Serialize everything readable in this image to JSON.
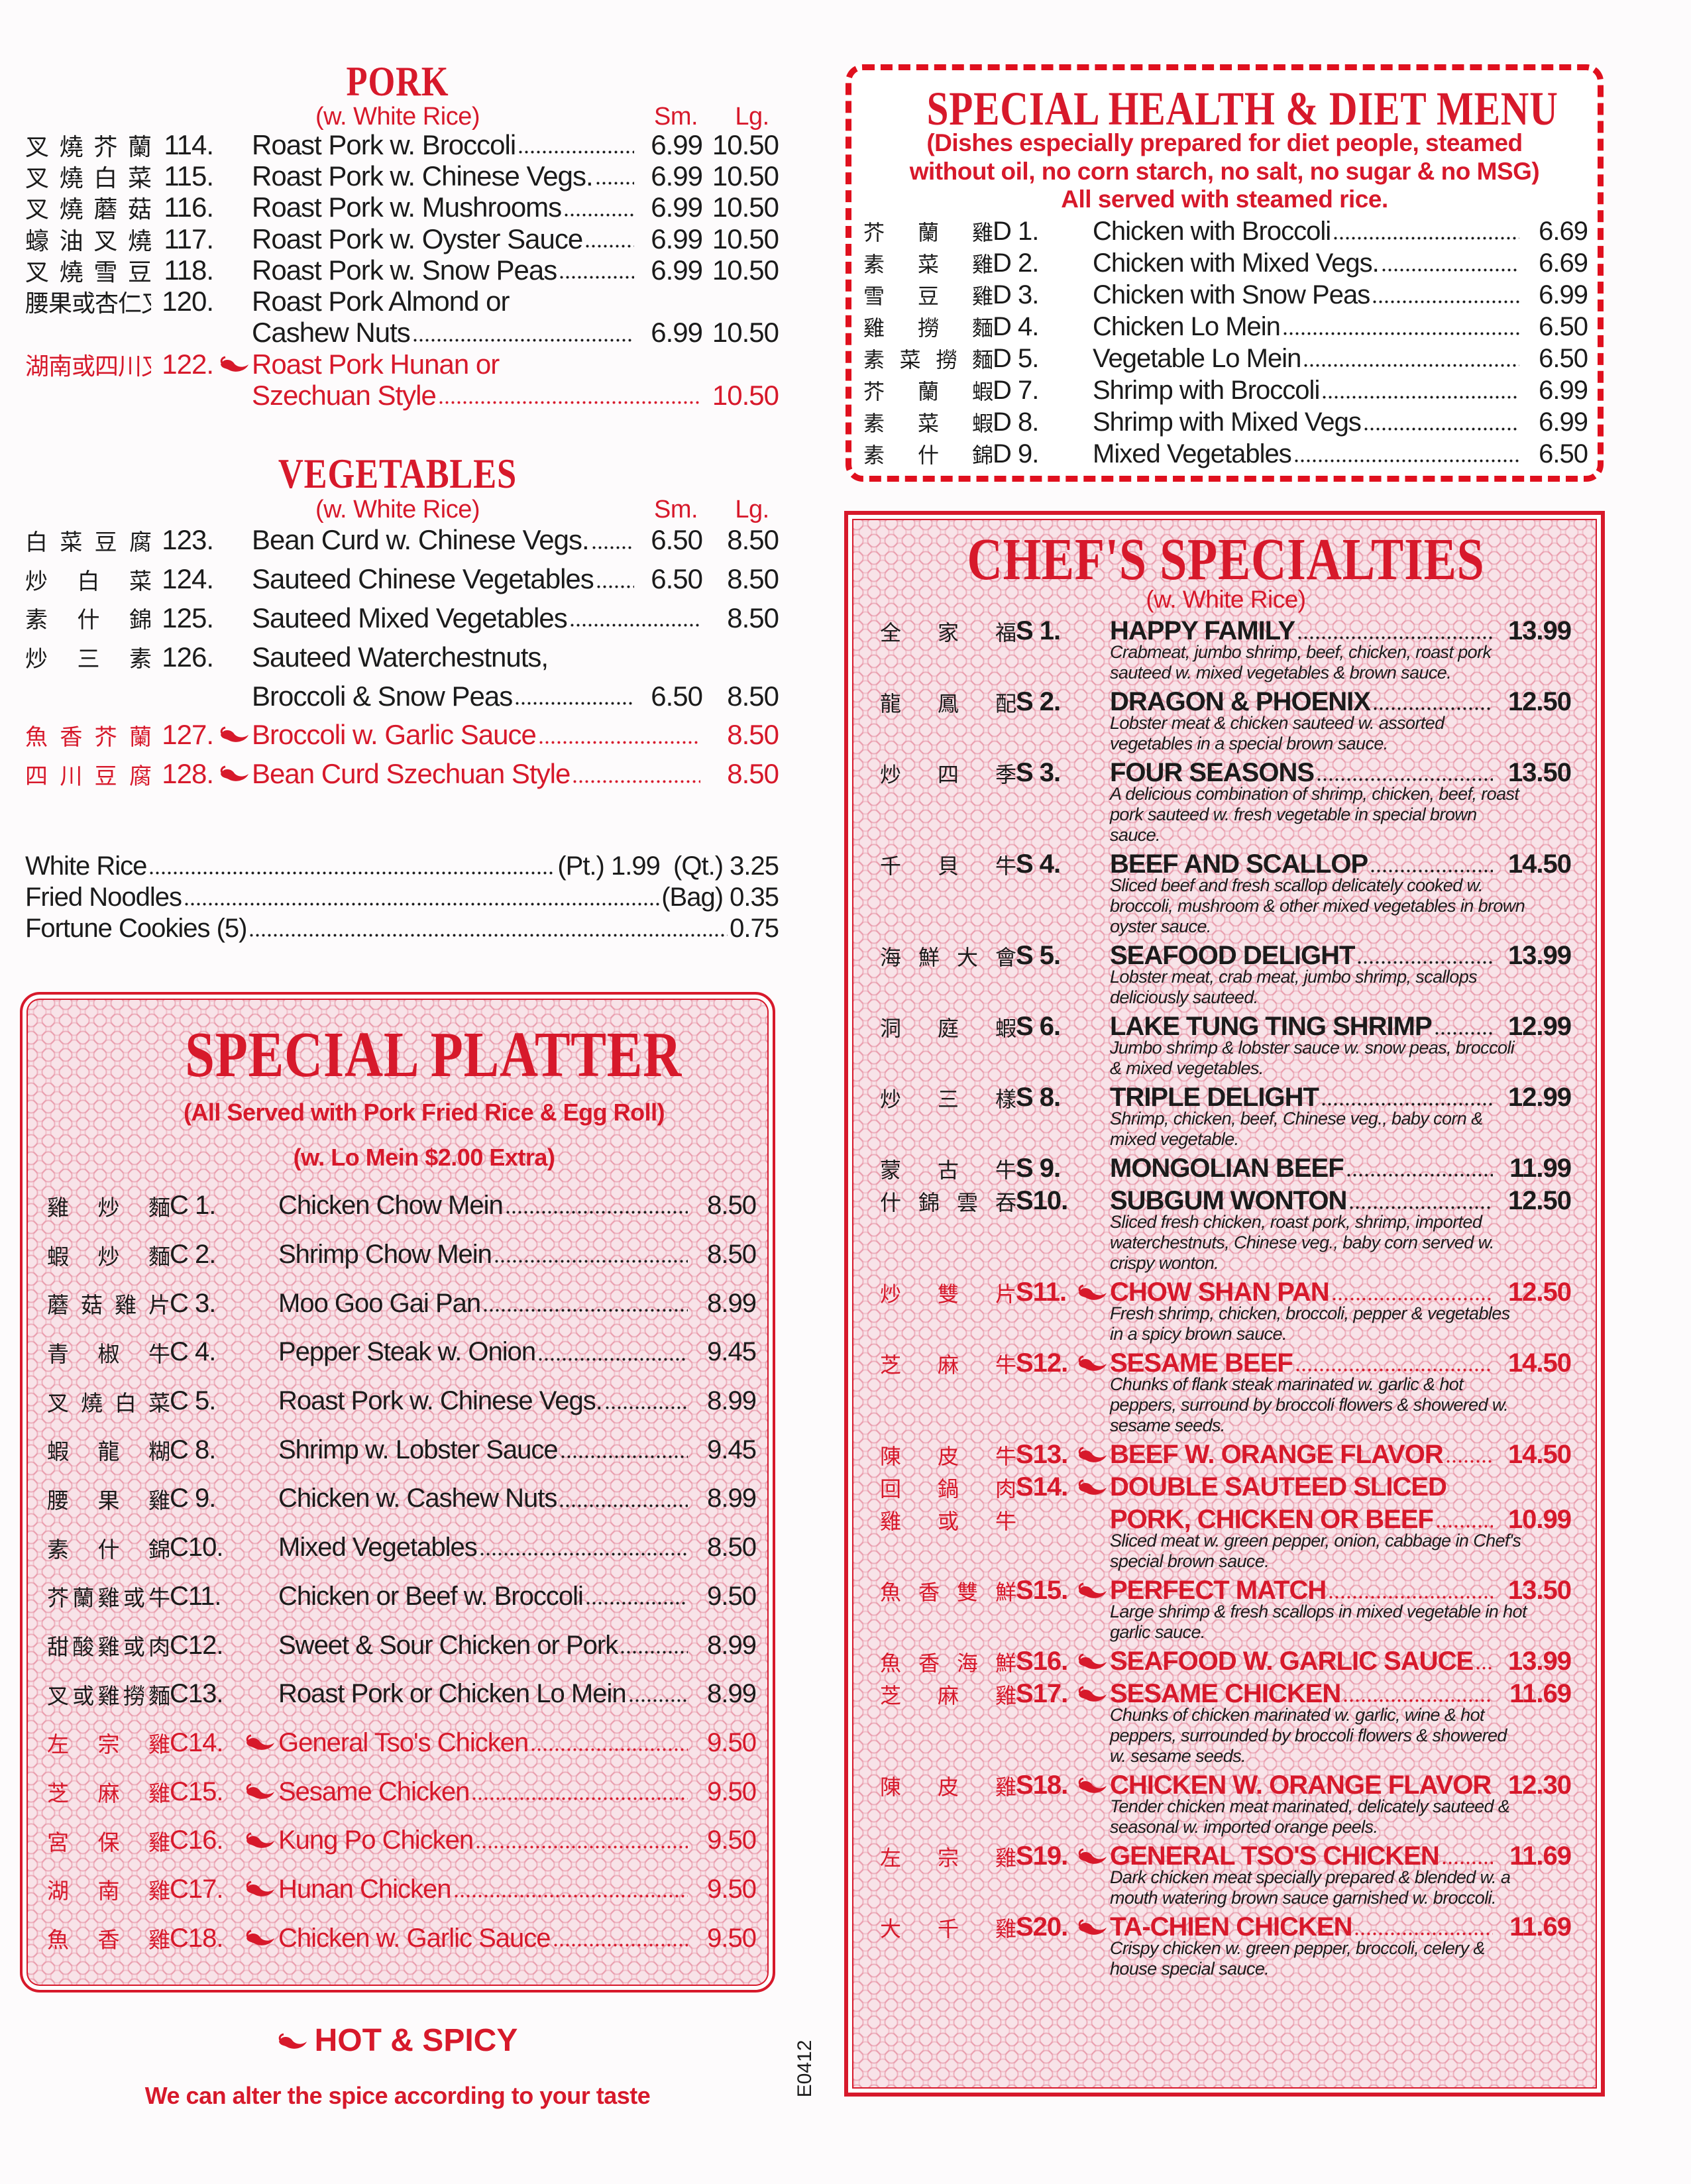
{
  "colors": {
    "accent": "#d7192b",
    "text": "#1b1b1b",
    "panel": "#f8e3e8"
  },
  "pork": {
    "title": "PORK",
    "subtitle": "(w. White Rice)",
    "sm_label": "Sm.",
    "lg_label": "Lg.",
    "items": [
      {
        "zh": "叉燒芥蘭",
        "code": "114.",
        "name": "Roast Pork w. Broccoli",
        "sm": "6.99",
        "lg": "10.50"
      },
      {
        "zh": "叉燒白菜",
        "code": "115.",
        "name": "Roast Pork w. Chinese Vegs.",
        "sm": "6.99",
        "lg": "10.50"
      },
      {
        "zh": "叉燒蘑菇",
        "code": "116.",
        "name": "Roast Pork w. Mushrooms",
        "sm": "6.99",
        "lg": "10.50"
      },
      {
        "zh": "蠔油叉燒",
        "code": "117.",
        "name": "Roast Pork w. Oyster Sauce",
        "sm": "6.99",
        "lg": "10.50"
      },
      {
        "zh": "叉燒雪豆",
        "code": "118.",
        "name": "Roast Pork w. Snow Peas",
        "sm": "6.99",
        "lg": "10.50"
      },
      {
        "zh": "腰果或杏仁叉燒",
        "code": "120.",
        "name": "Roast Pork Almond or",
        "name2": "Cashew Nuts",
        "sm": "6.99",
        "lg": "10.50"
      },
      {
        "zh": "湖南或四川叉燒",
        "code": "122.",
        "hot": true,
        "red": true,
        "name": "Roast Pork Hunan or",
        "name2": "Szechuan Style",
        "lg": "10.50"
      }
    ]
  },
  "vegetables": {
    "title": "VEGETABLES",
    "subtitle": "(w. White Rice)",
    "sm_label": "Sm.",
    "lg_label": "Lg.",
    "items": [
      {
        "zh": "白菜豆腐",
        "code": "123.",
        "name": "Bean Curd w. Chinese Vegs.",
        "sm": "6.50",
        "lg": "8.50"
      },
      {
        "zh": "炒白菜",
        "code": "124.",
        "name": "Sauteed Chinese Vegetables",
        "sm": "6.50",
        "lg": "8.50"
      },
      {
        "zh": "素什錦",
        "code": "125.",
        "name": "Sauteed Mixed Vegetables",
        "lg": "8.50"
      },
      {
        "zh": "炒三素",
        "code": "126.",
        "name": "Sauteed Waterchestnuts,",
        "name2": "Broccoli & Snow Peas",
        "sm": "6.50",
        "lg": "8.50"
      },
      {
        "zh": "魚香芥蘭",
        "code": "127.",
        "hot": true,
        "red": true,
        "name": "Broccoli w. Garlic Sauce",
        "lg": "8.50"
      },
      {
        "zh": "四川豆腐",
        "code": "128.",
        "hot": true,
        "red": true,
        "name": "Bean Curd Szechuan Style",
        "lg": "8.50"
      }
    ]
  },
  "extras": [
    {
      "name": "White Rice",
      "price": "(Pt.) 1.99  (Qt.) 3.25"
    },
    {
      "name": "Fried Noodles",
      "price": "(Bag) 0.35"
    },
    {
      "name": "Fortune Cookies (5)",
      "price": "0.75"
    }
  ],
  "platter": {
    "title": "SPECIAL PLATTER",
    "subtitle1": "(All Served with Pork Fried Rice & Egg Roll)",
    "subtitle2": "(w. Lo Mein $2.00 Extra)",
    "items": [
      {
        "zh": "雞炒麵",
        "code": "C 1.",
        "name": "Chicken Chow Mein",
        "price": "8.50"
      },
      {
        "zh": "蝦炒麵",
        "code": "C 2.",
        "name": "Shrimp Chow Mein",
        "price": "8.50"
      },
      {
        "zh": "蘑菇雞片",
        "code": "C 3.",
        "name": "Moo Goo Gai Pan",
        "price": "8.99"
      },
      {
        "zh": "青椒牛",
        "code": "C 4.",
        "name": "Pepper Steak w. Onion",
        "price": "9.45"
      },
      {
        "zh": "叉燒白菜",
        "code": "C 5.",
        "name": "Roast Pork w. Chinese Vegs.",
        "price": "8.99"
      },
      {
        "zh": "蝦龍糊",
        "code": "C 8.",
        "name": "Shrimp w. Lobster Sauce",
        "price": "9.45"
      },
      {
        "zh": "腰果雞",
        "code": "C 9.",
        "name": "Chicken w. Cashew Nuts",
        "price": "8.99"
      },
      {
        "zh": "素什錦",
        "code": "C10.",
        "name": "Mixed Vegetables",
        "price": "8.50"
      },
      {
        "zh": "芥蘭雞或牛",
        "code": "C11.",
        "name": "Chicken or Beef w. Broccoli",
        "price": "9.50"
      },
      {
        "zh": "甜酸雞或肉",
        "code": "C12.",
        "name": "Sweet & Sour Chicken or Pork",
        "price": "8.99"
      },
      {
        "zh": "叉或雞撈麵",
        "code": "C13.",
        "name": "Roast Pork or Chicken Lo Mein",
        "price": "8.99"
      },
      {
        "zh": "左宗雞",
        "code": "C14.",
        "hot": true,
        "red": true,
        "name": "General Tso's Chicken",
        "price": "9.50"
      },
      {
        "zh": "芝麻雞",
        "code": "C15.",
        "hot": true,
        "red": true,
        "name": "Sesame Chicken",
        "price": "9.50"
      },
      {
        "zh": "宮保雞",
        "code": "C16.",
        "hot": true,
        "red": true,
        "name": "Kung Po Chicken",
        "price": "9.50"
      },
      {
        "zh": "湖南雞",
        "code": "C17.",
        "hot": true,
        "red": true,
        "name": "Hunan Chicken",
        "price": "9.50"
      },
      {
        "zh": "魚香雞",
        "code": "C18.",
        "hot": true,
        "red": true,
        "name": "Chicken w. Garlic Sauce",
        "price": "9.50"
      }
    ]
  },
  "footer": {
    "hot_label": "HOT & SPICY",
    "note": "We can alter the spice according to your taste",
    "form_code": "E0412"
  },
  "diet": {
    "title": "SPECIAL HEALTH & DIET MENU",
    "subtitle1": "(Dishes especially prepared for diet people, steamed",
    "subtitle2": "without oil, no corn starch, no salt, no sugar & no MSG)",
    "subtitle3": "All served with steamed rice.",
    "items": [
      {
        "zh": "芥蘭雞",
        "code": "D 1.",
        "name": "Chicken with Broccoli",
        "price": "6.69"
      },
      {
        "zh": "素菜雞",
        "code": "D 2.",
        "name": "Chicken with Mixed Vegs.",
        "price": "6.69"
      },
      {
        "zh": "雪豆雞",
        "code": "D 3.",
        "name": "Chicken with Snow Peas",
        "price": "6.99"
      },
      {
        "zh": "雞撈麵",
        "code": "D 4.",
        "name": "Chicken Lo Mein",
        "price": "6.50"
      },
      {
        "zh": "素菜撈麵",
        "code": "D 5.",
        "name": "Vegetable Lo Mein",
        "price": "6.50"
      },
      {
        "zh": "芥蘭蝦",
        "code": "D 7.",
        "name": "Shrimp with Broccoli",
        "price": "6.99"
      },
      {
        "zh": "素菜蝦",
        "code": "D 8.",
        "name": "Shrimp with Mixed Vegs",
        "price": "6.99"
      },
      {
        "zh": "素什錦",
        "code": "D 9.",
        "name": "Mixed Vegetables",
        "price": "6.50"
      }
    ]
  },
  "chef": {
    "title": "CHEF'S SPECIALTIES",
    "subtitle": "(w. White Rice)",
    "items": [
      {
        "zh": "全家福",
        "code": "S 1.",
        "name": "HAPPY FAMILY",
        "price": "13.99",
        "desc": "Crabmeat, jumbo shrimp, beef, chicken, roast pork sauteed w. mixed vegetables & brown sauce."
      },
      {
        "zh": "龍鳳配",
        "code": "S 2.",
        "name": "DRAGON & PHOENIX",
        "price": "12.50",
        "desc": "Lobster meat & chicken sauteed w. assorted vegetables in a special brown sauce."
      },
      {
        "zh": "炒四季",
        "code": "S 3.",
        "name": "FOUR SEASONS",
        "price": "13.50",
        "desc": "A delicious combination of shrimp, chicken, beef, roast pork sauteed w. fresh vegetable in special brown sauce."
      },
      {
        "zh": "千貝牛",
        "code": "S 4.",
        "name": "BEEF AND SCALLOP",
        "price": "14.50",
        "desc": "Sliced beef and fresh scallop delicately cooked w. broccoli, mushroom & other mixed vegetables in brown oyster sauce."
      },
      {
        "zh": "海鮮大會",
        "code": "S 5.",
        "name": "SEAFOOD DELIGHT",
        "price": "13.99",
        "desc": "Lobster meat, crab meat, jumbo shrimp, scallops deliciously sauteed."
      },
      {
        "zh": "洞庭蝦",
        "code": "S 6.",
        "name": "LAKE TUNG TING SHRIMP",
        "price": "12.99",
        "desc": "Jumbo shrimp & lobster sauce w. snow peas, broccoli & mixed vegetables."
      },
      {
        "zh": "炒三樣",
        "code": "S 8.",
        "name": "TRIPLE DELIGHT",
        "price": "12.99",
        "desc": "Shrimp, chicken, beef, Chinese veg., baby corn & mixed vegetable."
      },
      {
        "zh": "蒙古牛",
        "code": "S 9.",
        "name": "MONGOLIAN BEEF",
        "price": "11.99"
      },
      {
        "zh": "什錦雲吞",
        "code": "S10.",
        "name": "SUBGUM WONTON",
        "price": "12.50",
        "desc": "Sliced fresh chicken, roast pork, shrimp, imported waterchestnuts, Chinese veg., baby corn served w. crispy wonton."
      },
      {
        "zh": "炒雙片",
        "code": "S11.",
        "hot": true,
        "red": true,
        "name": "CHOW SHAN PAN",
        "price": "12.50",
        "desc": "Fresh shrimp, chicken, broccoli, pepper & vegetables in a spicy brown sauce."
      },
      {
        "zh": "芝麻牛",
        "code": "S12.",
        "hot": true,
        "red": true,
        "name": "SESAME BEEF",
        "price": "14.50",
        "desc": "Chunks of flank steak marinated w. garlic & hot peppers, surround by broccoli flowers & showered w. sesame seeds."
      },
      {
        "zh": "陳皮牛",
        "code": "S13.",
        "hot": true,
        "red": true,
        "name": "BEEF W. ORANGE FLAVOR",
        "price": "14.50"
      },
      {
        "zh": "回鍋肉",
        "zh2": "雞或牛",
        "code": "S14.",
        "hot": true,
        "red": true,
        "name": "DOUBLE SAUTEED SLICED",
        "name2": "PORK, CHICKEN OR BEEF",
        "price": "10.99",
        "desc": "Sliced meat w. green pepper, onion, cabbage in Chef's special brown sauce."
      },
      {
        "zh": "魚香雙鮮",
        "code": "S15.",
        "hot": true,
        "red": true,
        "name": "PERFECT MATCH",
        "price": "13.50",
        "desc": "Large shrimp & fresh scallops in mixed vegetable in hot garlic sauce."
      },
      {
        "zh": "魚香海鮮",
        "code": "S16.",
        "hot": true,
        "red": true,
        "name": "SEAFOOD W. GARLIC SAUCE",
        "price": "13.99"
      },
      {
        "zh": "芝麻雞",
        "code": "S17.",
        "hot": true,
        "red": true,
        "name": "SESAME CHICKEN",
        "price": "11.69",
        "desc": "Chunks of chicken marinated w. garlic, wine & hot peppers, surrounded by broccoli flowers & showered w. sesame seeds."
      },
      {
        "zh": "陳皮雞",
        "code": "S18.",
        "hot": true,
        "red": true,
        "name": "CHICKEN W. ORANGE FLAVOR",
        "price": "12.30",
        "desc": "Tender chicken meat marinated, delicately sauteed & seasonal w. imported orange peels."
      },
      {
        "zh": "左宗雞",
        "code": "S19.",
        "hot": true,
        "red": true,
        "name": "GENERAL TSO'S CHICKEN",
        "price": "11.69",
        "desc": "Dark chicken meat specially prepared & blended w. a mouth watering brown sauce garnished w. broccoli."
      },
      {
        "zh": "大千雞",
        "code": "S20.",
        "hot": true,
        "red": true,
        "name": "TA-CHIEN CHICKEN",
        "price": "11.69",
        "desc": "Crispy chicken w. green pepper, broccoli, celery & house special sauce."
      }
    ]
  }
}
